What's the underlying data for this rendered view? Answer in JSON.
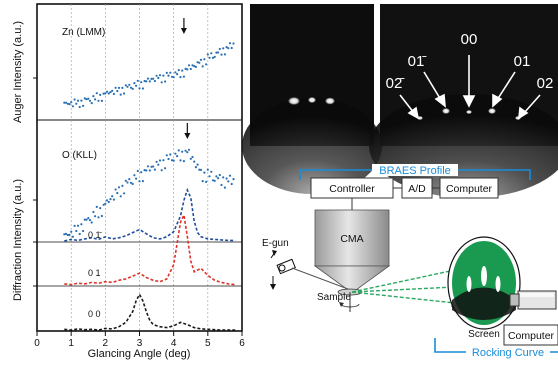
{
  "chart_data": [
    {
      "type": "scatter",
      "panel": "Zn Auger",
      "annotation": "Zn (LMM)",
      "series": [
        {
          "name": "Zn (LMM)",
          "x": [
            0.8,
            1.0,
            1.2,
            1.4,
            1.6,
            1.8,
            2.0,
            2.2,
            2.4,
            2.6,
            2.8,
            3.0,
            3.2,
            3.4,
            3.6,
            3.8,
            4.0,
            4.2,
            4.4,
            4.6,
            4.8,
            5.0,
            5.2,
            5.4,
            5.6,
            5.8
          ],
          "y": [
            0.02,
            0.03,
            0.05,
            0.08,
            0.1,
            0.14,
            0.17,
            0.21,
            0.24,
            0.27,
            0.31,
            0.33,
            0.36,
            0.4,
            0.43,
            0.45,
            0.48,
            0.5,
            0.55,
            0.6,
            0.66,
            0.72,
            0.78,
            0.84,
            0.88,
            0.92
          ]
        }
      ],
      "arrow_x": 4.3
    },
    {
      "type": "scatter",
      "panel": "O Auger",
      "annotation": "O (KLL)",
      "series": [
        {
          "name": "O (KLL)",
          "x": [
            0.8,
            1.0,
            1.2,
            1.4,
            1.6,
            1.8,
            2.0,
            2.2,
            2.4,
            2.6,
            2.8,
            3.0,
            3.2,
            3.4,
            3.6,
            3.8,
            4.0,
            4.2,
            4.4,
            4.6,
            4.8,
            5.0,
            5.2,
            5.4,
            5.6,
            5.8
          ],
          "y": [
            0.03,
            0.06,
            0.12,
            0.18,
            0.24,
            0.3,
            0.36,
            0.44,
            0.52,
            0.58,
            0.64,
            0.68,
            0.72,
            0.76,
            0.8,
            0.84,
            0.88,
            0.9,
            0.92,
            0.82,
            0.7,
            0.68,
            0.66,
            0.64,
            0.62,
            0.6
          ]
        }
      ],
      "arrow_x": 4.4
    },
    {
      "type": "line",
      "panel": "Diffraction",
      "series": [
        {
          "name": "0 1̄",
          "color": "#1f4fa0",
          "x": [
            0.8,
            1.0,
            1.2,
            1.4,
            1.6,
            1.8,
            2.0,
            2.2,
            2.4,
            2.6,
            2.8,
            3.0,
            3.2,
            3.4,
            3.6,
            3.8,
            4.0,
            4.2,
            4.3,
            4.4,
            4.5,
            4.6,
            4.7,
            4.8,
            5.0,
            5.2,
            5.4,
            5.6,
            5.8
          ],
          "y": [
            0.02,
            0.05,
            0.03,
            0.06,
            0.08,
            0.05,
            0.1,
            0.06,
            0.08,
            0.12,
            0.18,
            0.24,
            0.16,
            0.08,
            0.06,
            0.1,
            0.2,
            0.5,
            0.8,
            1.0,
            0.85,
            0.4,
            0.18,
            0.1,
            0.06,
            0.05,
            0.04,
            0.03,
            0.03
          ]
        },
        {
          "name": "0 1",
          "color": "#e0322a",
          "x": [
            0.8,
            1.0,
            1.2,
            1.4,
            1.6,
            1.8,
            2.0,
            2.2,
            2.4,
            2.6,
            2.8,
            3.0,
            3.2,
            3.4,
            3.6,
            3.8,
            4.0,
            4.1,
            4.2,
            4.3,
            4.4,
            4.5,
            4.6,
            4.8,
            5.0,
            5.2,
            5.4,
            5.6,
            5.8
          ],
          "y": [
            0.03,
            0.02,
            0.04,
            0.03,
            0.05,
            0.04,
            0.06,
            0.05,
            0.08,
            0.1,
            0.14,
            0.18,
            0.12,
            0.08,
            0.06,
            0.1,
            0.3,
            0.6,
            0.9,
            1.0,
            0.7,
            0.35,
            0.2,
            0.25,
            0.15,
            0.08,
            0.05,
            0.03,
            0.02
          ]
        },
        {
          "name": "0 0",
          "color": "#1a1a1a",
          "x": [
            0.8,
            1.0,
            1.2,
            1.4,
            1.6,
            1.8,
            2.0,
            2.2,
            2.4,
            2.6,
            2.8,
            2.9,
            3.0,
            3.1,
            3.2,
            3.3,
            3.4,
            3.6,
            3.8,
            4.0,
            4.2,
            4.4,
            4.6,
            4.8,
            5.0,
            5.2,
            5.4,
            5.6,
            5.8
          ],
          "y": [
            0.04,
            0.02,
            0.05,
            0.03,
            0.04,
            0.02,
            0.06,
            0.05,
            0.1,
            0.2,
            0.45,
            0.7,
            0.85,
            0.7,
            0.45,
            0.25,
            0.15,
            0.1,
            0.08,
            0.12,
            0.2,
            0.15,
            0.08,
            0.05,
            0.04,
            0.03,
            0.02,
            0.02,
            0.02
          ]
        }
      ]
    }
  ],
  "axes": {
    "xlabel": "Glancing Angle (deg)",
    "xticks": [
      "0",
      "1",
      "2",
      "3",
      "4",
      "5",
      "6"
    ],
    "xlim": [
      0,
      6
    ],
    "ylabel_top": "Auger Intensity (a.u.)",
    "ylabel_bottom": "Diffraction Intensity (a.u.)"
  },
  "rheed": {
    "labels": [
      "00",
      "01̄",
      "01",
      "02̄",
      "02"
    ]
  },
  "schematic": {
    "title": "BRAES Profile",
    "controller": "Controller",
    "ad": "A/D",
    "computer_top": "Computer",
    "cma": "CMA",
    "egun": "E-gun",
    "sample": "Sample",
    "screen": "Screen",
    "computer_bottom": "Computer",
    "rocking": "Rocking Curve",
    "bracket_color": "#1a8cd8",
    "beam_color": "#2aa860",
    "screen_color": "#1a9a50"
  }
}
